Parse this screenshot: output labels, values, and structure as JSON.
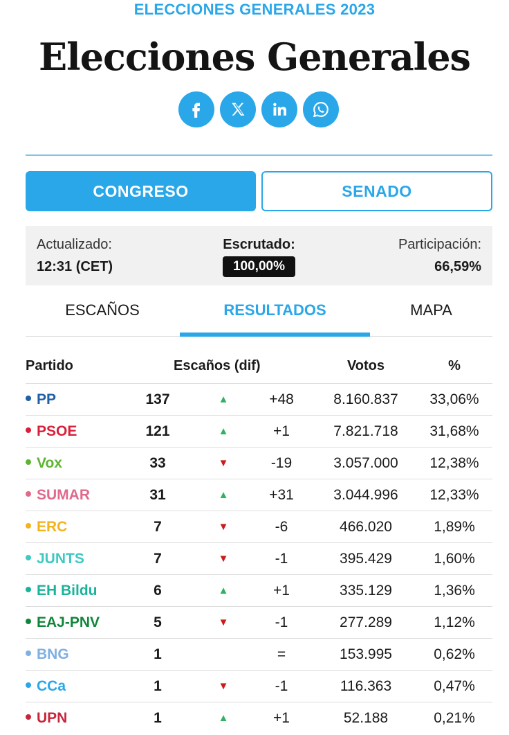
{
  "kicker": "ELECCIONES GENERALES 2023",
  "title": "Elecciones Generales",
  "share": [
    {
      "icon": "facebook-icon"
    },
    {
      "icon": "x-twitter-icon"
    },
    {
      "icon": "linkedin-icon"
    },
    {
      "icon": "whatsapp-icon"
    }
  ],
  "chambers": {
    "active": "CONGRESO",
    "inactive": "SENADO"
  },
  "status": {
    "updated_label": "Actualizado:",
    "updated_value": "12:31 (CET)",
    "counted_label": "Escrutado:",
    "counted_value": "100,00%",
    "turnout_label": "Participación:",
    "turnout_value": "66,59%"
  },
  "tabs": {
    "escanos": "ESCAÑOS",
    "resultados": "RESULTADOS",
    "mapa": "MAPA"
  },
  "table": {
    "headers": {
      "party": "Partido",
      "seats": "Escaños (dif)",
      "votes": "Votos",
      "pct": "%"
    },
    "rows": [
      {
        "party": "PP",
        "color": "#1f5fa8",
        "seats": "137",
        "trend": "up",
        "diff": "+48",
        "votes": "8.160.837",
        "pct": "33,06%"
      },
      {
        "party": "PSOE",
        "color": "#d8203a",
        "seats": "121",
        "trend": "up",
        "diff": "+1",
        "votes": "7.821.718",
        "pct": "31,68%"
      },
      {
        "party": "Vox",
        "color": "#5cb531",
        "seats": "33",
        "trend": "down",
        "diff": "-19",
        "votes": "3.057.000",
        "pct": "12,38%"
      },
      {
        "party": "SUMAR",
        "color": "#e0698c",
        "seats": "31",
        "trend": "up",
        "diff": "+31",
        "votes": "3.044.996",
        "pct": "12,33%"
      },
      {
        "party": "ERC",
        "color": "#f2b31e",
        "seats": "7",
        "trend": "down",
        "diff": "-6",
        "votes": "466.020",
        "pct": "1,89%"
      },
      {
        "party": "JUNTS",
        "color": "#3fc9c2",
        "seats": "7",
        "trend": "down",
        "diff": "-1",
        "votes": "395.429",
        "pct": "1,60%"
      },
      {
        "party": "EH Bildu",
        "color": "#1ab39a",
        "seats": "6",
        "trend": "up",
        "diff": "+1",
        "votes": "335.129",
        "pct": "1,36%"
      },
      {
        "party": "EAJ-PNV",
        "color": "#10863a",
        "seats": "5",
        "trend": "down",
        "diff": "-1",
        "votes": "277.289",
        "pct": "1,12%"
      },
      {
        "party": "BNG",
        "color": "#7fb0e2",
        "seats": "1",
        "trend": "equal",
        "diff": "=",
        "votes": "153.995",
        "pct": "0,62%"
      },
      {
        "party": "CCa",
        "color": "#2aa7e8",
        "seats": "1",
        "trend": "down",
        "diff": "-1",
        "votes": "116.363",
        "pct": "0,47%"
      },
      {
        "party": "UPN",
        "color": "#c6263b",
        "seats": "1",
        "trend": "up",
        "diff": "+1",
        "votes": "52.188",
        "pct": "0,21%"
      }
    ]
  }
}
